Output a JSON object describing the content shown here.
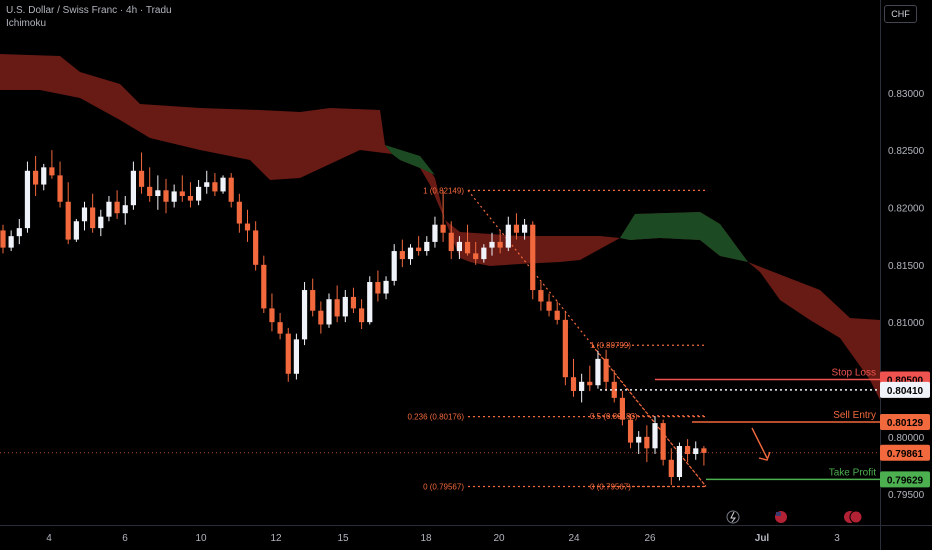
{
  "header": {
    "symbol_line": "U.S. Dollar / Swiss Franc · 4h · Tradu",
    "indicator": "Ichimoku"
  },
  "currency_button": "CHF",
  "colors": {
    "background": "#000000",
    "bull": "#f0f3fa",
    "bear": "#f2693d",
    "cloud_bear": "#7a1f18",
    "cloud_bull": "#1b4a23",
    "fib": "#f2693d",
    "stop_loss": "#ef5350",
    "sell_entry": "#f2693d",
    "take_profit": "#4caf50",
    "price_line": "#f2693d",
    "axis_text": "#b2b5be"
  },
  "chart_data": {
    "type": "candlestick",
    "ylim": [
      0.7924,
      0.836
    ],
    "y_ticks": [
      "0.83000",
      "0.82500",
      "0.82000",
      "0.81500",
      "0.81000",
      "0.80500",
      "0.80000",
      "0.79500"
    ],
    "x_ticks": [
      "4",
      "6",
      "10",
      "12",
      "15",
      "18",
      "20",
      "24",
      "26",
      "Jul",
      "3"
    ],
    "candles": [
      [
        0.818,
        0.8185,
        0.816,
        0.8165
      ],
      [
        0.8165,
        0.818,
        0.8162,
        0.8175
      ],
      [
        0.8175,
        0.819,
        0.8168,
        0.8182
      ],
      [
        0.8182,
        0.824,
        0.8178,
        0.8232
      ],
      [
        0.8232,
        0.8245,
        0.821,
        0.822
      ],
      [
        0.822,
        0.8238,
        0.8215,
        0.8235
      ],
      [
        0.8235,
        0.825,
        0.8225,
        0.8228
      ],
      [
        0.8228,
        0.824,
        0.82,
        0.8205
      ],
      [
        0.8205,
        0.8222,
        0.8168,
        0.8172
      ],
      [
        0.8172,
        0.819,
        0.817,
        0.8188
      ],
      [
        0.8188,
        0.8205,
        0.818,
        0.82
      ],
      [
        0.82,
        0.8212,
        0.8178,
        0.8182
      ],
      [
        0.8182,
        0.8198,
        0.8175,
        0.8192
      ],
      [
        0.8192,
        0.821,
        0.8188,
        0.8205
      ],
      [
        0.8205,
        0.8215,
        0.819,
        0.8195
      ],
      [
        0.8195,
        0.821,
        0.8185,
        0.8202
      ],
      [
        0.8202,
        0.824,
        0.8198,
        0.8232
      ],
      [
        0.8232,
        0.8248,
        0.8212,
        0.8218
      ],
      [
        0.8218,
        0.8235,
        0.8205,
        0.821
      ],
      [
        0.821,
        0.8228,
        0.8198,
        0.8215
      ],
      [
        0.8215,
        0.8225,
        0.8195,
        0.8205
      ],
      [
        0.8205,
        0.822,
        0.82,
        0.8214
      ],
      [
        0.8214,
        0.8228,
        0.8205,
        0.821
      ],
      [
        0.821,
        0.8222,
        0.82,
        0.8206
      ],
      [
        0.8206,
        0.8224,
        0.8202,
        0.8218
      ],
      [
        0.8218,
        0.8232,
        0.8212,
        0.8222
      ],
      [
        0.8222,
        0.823,
        0.821,
        0.8214
      ],
      [
        0.8214,
        0.8228,
        0.8212,
        0.8226
      ],
      [
        0.8226,
        0.823,
        0.82,
        0.8205
      ],
      [
        0.8205,
        0.8212,
        0.8178,
        0.8186
      ],
      [
        0.8186,
        0.8198,
        0.817,
        0.818
      ],
      [
        0.818,
        0.8188,
        0.8145,
        0.815
      ],
      [
        0.815,
        0.8158,
        0.8108,
        0.8112
      ],
      [
        0.8112,
        0.8125,
        0.8092,
        0.81
      ],
      [
        0.81,
        0.8108,
        0.8085,
        0.809
      ],
      [
        0.809,
        0.8095,
        0.8048,
        0.8055
      ],
      [
        0.8055,
        0.809,
        0.805,
        0.8085
      ],
      [
        0.8085,
        0.8135,
        0.808,
        0.8128
      ],
      [
        0.8128,
        0.8138,
        0.8105,
        0.811
      ],
      [
        0.811,
        0.8118,
        0.809,
        0.8098
      ],
      [
        0.8098,
        0.8125,
        0.8095,
        0.812
      ],
      [
        0.812,
        0.8132,
        0.81,
        0.8105
      ],
      [
        0.8105,
        0.8128,
        0.81,
        0.8122
      ],
      [
        0.8122,
        0.813,
        0.8108,
        0.8112
      ],
      [
        0.8112,
        0.812,
        0.8094,
        0.81
      ],
      [
        0.81,
        0.814,
        0.8098,
        0.8135
      ],
      [
        0.8135,
        0.8145,
        0.8118,
        0.8125
      ],
      [
        0.8125,
        0.814,
        0.812,
        0.8136
      ],
      [
        0.8136,
        0.8168,
        0.8132,
        0.8162
      ],
      [
        0.8162,
        0.8172,
        0.8148,
        0.8155
      ],
      [
        0.8155,
        0.8168,
        0.815,
        0.8165
      ],
      [
        0.8165,
        0.8175,
        0.8158,
        0.8162
      ],
      [
        0.8162,
        0.8175,
        0.8158,
        0.817
      ],
      [
        0.817,
        0.8192,
        0.8165,
        0.8185
      ],
      [
        0.8185,
        0.8215,
        0.817,
        0.8178
      ],
      [
        0.8178,
        0.8188,
        0.8155,
        0.8162
      ],
      [
        0.8162,
        0.8175,
        0.8155,
        0.817
      ],
      [
        0.817,
        0.8185,
        0.8158,
        0.816
      ],
      [
        0.816,
        0.817,
        0.815,
        0.8155
      ],
      [
        0.8155,
        0.8168,
        0.8152,
        0.8165
      ],
      [
        0.8165,
        0.8178,
        0.8158,
        0.817
      ],
      [
        0.817,
        0.818,
        0.816,
        0.8165
      ],
      [
        0.8165,
        0.8192,
        0.8162,
        0.8185
      ],
      [
        0.8185,
        0.8195,
        0.8172,
        0.8178
      ],
      [
        0.8178,
        0.819,
        0.8172,
        0.8185
      ],
      [
        0.8185,
        0.8188,
        0.812,
        0.8128
      ],
      [
        0.8128,
        0.8135,
        0.811,
        0.8118
      ],
      [
        0.8118,
        0.8125,
        0.8105,
        0.811
      ],
      [
        0.811,
        0.8118,
        0.8098,
        0.8102
      ],
      [
        0.8102,
        0.811,
        0.8045,
        0.8052
      ],
      [
        0.8052,
        0.8068,
        0.8035,
        0.804
      ],
      [
        0.804,
        0.8055,
        0.803,
        0.8048
      ],
      [
        0.8048,
        0.8062,
        0.804,
        0.8045
      ],
      [
        0.8045,
        0.8075,
        0.8042,
        0.8068
      ],
      [
        0.8068,
        0.8076,
        0.804,
        0.8048
      ],
      [
        0.8048,
        0.8058,
        0.803,
        0.8034
      ],
      [
        0.8034,
        0.804,
        0.801,
        0.8015
      ],
      [
        0.8015,
        0.802,
        0.799,
        0.7995
      ],
      [
        0.7995,
        0.8005,
        0.7985,
        0.8
      ],
      [
        0.8,
        0.801,
        0.7978,
        0.799
      ],
      [
        0.799,
        0.8018,
        0.7985,
        0.8012
      ],
      [
        0.8012,
        0.8015,
        0.7975,
        0.798
      ],
      [
        0.798,
        0.799,
        0.7958,
        0.7965
      ],
      [
        0.7965,
        0.7995,
        0.7962,
        0.7992
      ],
      [
        0.7992,
        0.7998,
        0.7978,
        0.7985
      ],
      [
        0.7985,
        0.7996,
        0.798,
        0.799
      ],
      [
        0.799,
        0.7992,
        0.7975,
        0.7986
      ]
    ],
    "levels": {
      "stop_loss": {
        "label": "Stop Loss",
        "price": "0.80500"
      },
      "entry_ref": {
        "price": "0.80410"
      },
      "sell_entry": {
        "label": "Sell Entry",
        "price": "0.80129"
      },
      "last_price": {
        "price": "0.79861"
      },
      "take_profit": {
        "label": "Take Profit",
        "price": "0.79629"
      }
    },
    "fib_left": {
      "levels": [
        "1 (0.82149)",
        "0.236 (0.80176)",
        "0 (0.79567)"
      ]
    },
    "fib_right": {
      "levels": [
        "1 (0.80799)",
        "0.5 (0.80183)",
        "0 (0.79567)"
      ]
    }
  }
}
